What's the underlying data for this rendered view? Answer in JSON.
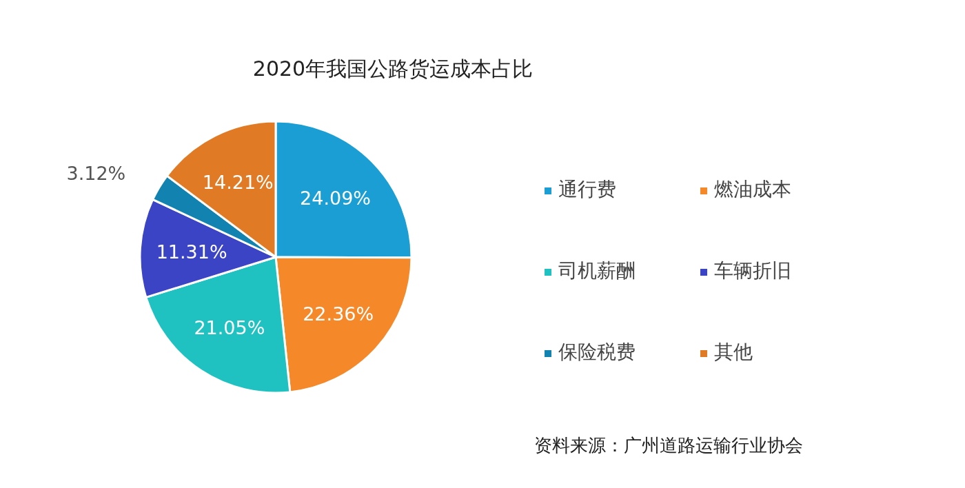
{
  "chart_data": {
    "type": "pie",
    "title": "2020年我国公路货运成本占比",
    "categories": [
      "通行费",
      "燃油成本",
      "司机薪酬",
      "车辆折旧",
      "保险税费",
      "其他"
    ],
    "values": [
      24.09,
      22.36,
      21.05,
      11.31,
      3.12,
      14.21
    ],
    "value_labels": [
      "24.09%",
      "22.36%",
      "21.05%",
      "11.31%",
      "3.12%",
      "14.21%"
    ],
    "colors": [
      "#1a9ed4",
      "#f5892a",
      "#1fc2c0",
      "#3a44c4",
      "#1283b0",
      "#e07a24"
    ],
    "legend": "right",
    "annotations": [
      "资料来源：广州道路运输行业协会"
    ]
  }
}
